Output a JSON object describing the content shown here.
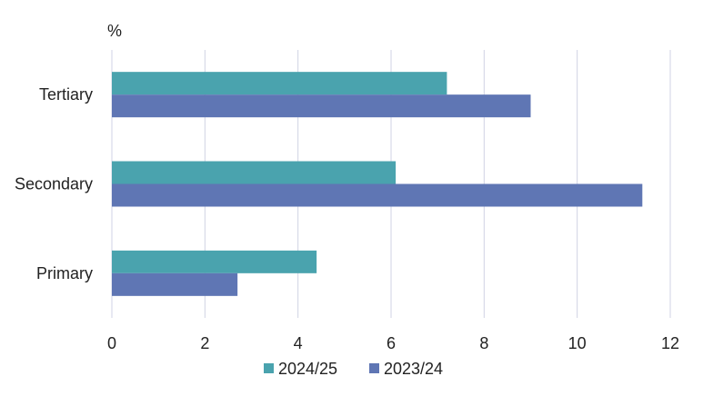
{
  "chart_data": {
    "type": "bar",
    "orientation": "horizontal",
    "unit_label": "%",
    "categories": [
      "Tertiary",
      "Secondary",
      "Primary"
    ],
    "series": [
      {
        "name": "2024/25",
        "color": "#4aa3ae",
        "values": [
          7.2,
          6.1,
          4.4
        ]
      },
      {
        "name": "2023/24",
        "color": "#5f76b4",
        "values": [
          9.0,
          11.4,
          2.7
        ]
      }
    ],
    "xlim": [
      0,
      12
    ],
    "xticks": [
      "0",
      "2",
      "4",
      "6",
      "8",
      "10",
      "12"
    ],
    "grid": "vertical",
    "legend_position": "bottom"
  }
}
